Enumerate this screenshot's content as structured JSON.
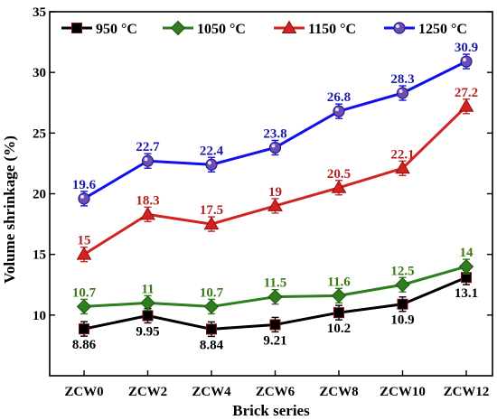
{
  "chart_data": {
    "type": "line",
    "xlabel": "Brick series",
    "ylabel": "Volume shrinkage (%)",
    "categories": [
      "ZCW0",
      "ZCW2",
      "ZCW4",
      "ZCW6",
      "ZCW8",
      "ZCW10",
      "ZCW12"
    ],
    "ylim": [
      5,
      35
    ],
    "yticks": [
      10,
      15,
      20,
      25,
      30,
      35
    ],
    "yticklabels": [
      "10",
      "15",
      "20",
      "25",
      "30",
      "35"
    ],
    "grid": false,
    "legend_position": "top",
    "series": [
      {
        "name": "950 °C",
        "color": "#000000",
        "label_color": "#000000",
        "marker": "square",
        "values": [
          8.86,
          9.95,
          8.84,
          9.21,
          10.2,
          10.9,
          13.1
        ],
        "labels": [
          "8.86",
          "9.95",
          "8.84",
          "9.21",
          "10.2",
          "10.9",
          "13.1"
        ],
        "label_side": "below"
      },
      {
        "name": "1050 °C",
        "color": "#2e7d1e",
        "label_color": "#3b7a12",
        "marker": "diamond",
        "values": [
          10.7,
          11,
          10.7,
          11.5,
          11.6,
          12.5,
          14
        ],
        "labels": [
          "10.7",
          "11",
          "10.7",
          "11.5",
          "11.6",
          "12.5",
          "14"
        ],
        "label_side": "above"
      },
      {
        "name": "1150 °C",
        "color": "#d32222",
        "label_color": "#b22222",
        "marker": "triangle",
        "values": [
          15,
          18.3,
          17.5,
          19,
          20.5,
          22.1,
          27.2
        ],
        "labels": [
          "15",
          "18.3",
          "17.5",
          "19",
          "20.5",
          "22.1",
          "27.2"
        ],
        "label_side": "above"
      },
      {
        "name": "1250 °C",
        "color": "#1010ee",
        "label_color": "#1a1aa8",
        "marker": "circle",
        "values": [
          19.6,
          22.7,
          22.4,
          23.8,
          26.8,
          28.3,
          30.9
        ],
        "labels": [
          "19.6",
          "22.7",
          "22.4",
          "23.8",
          "26.8",
          "28.3",
          "30.9"
        ],
        "label_side": "above"
      }
    ]
  }
}
